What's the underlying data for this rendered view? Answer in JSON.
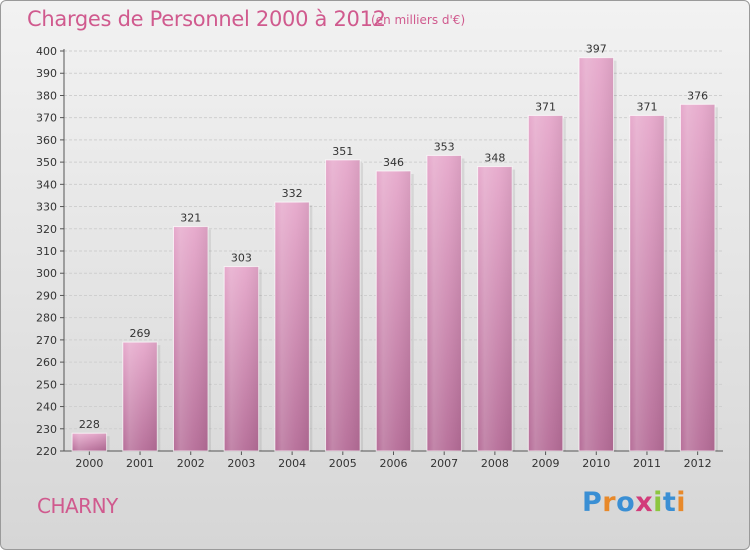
{
  "title": "Charges de Personnel 2000 à 2012",
  "unit": "(en milliers d'€)",
  "commune": "CHARNY",
  "logo": {
    "text": "Proxiti",
    "colors": [
      "#3a8fd4",
      "#e8892a",
      "#3a8fd4",
      "#d23c7a",
      "#8cc63f",
      "#3a8fd4",
      "#e8892a"
    ]
  },
  "chart_data": {
    "type": "bar",
    "categories": [
      "2000",
      "2001",
      "2002",
      "2003",
      "2004",
      "2005",
      "2006",
      "2007",
      "2008",
      "2009",
      "2010",
      "2011",
      "2012"
    ],
    "values": [
      228,
      269,
      321,
      303,
      332,
      351,
      346,
      353,
      348,
      371,
      397,
      371,
      376
    ],
    "ylim": [
      220,
      400
    ],
    "yticks": [
      220,
      230,
      240,
      250,
      260,
      270,
      280,
      290,
      300,
      310,
      320,
      330,
      340,
      350,
      360,
      370,
      380,
      390,
      400
    ],
    "grid": true,
    "bar_color": "#c97aa7"
  }
}
